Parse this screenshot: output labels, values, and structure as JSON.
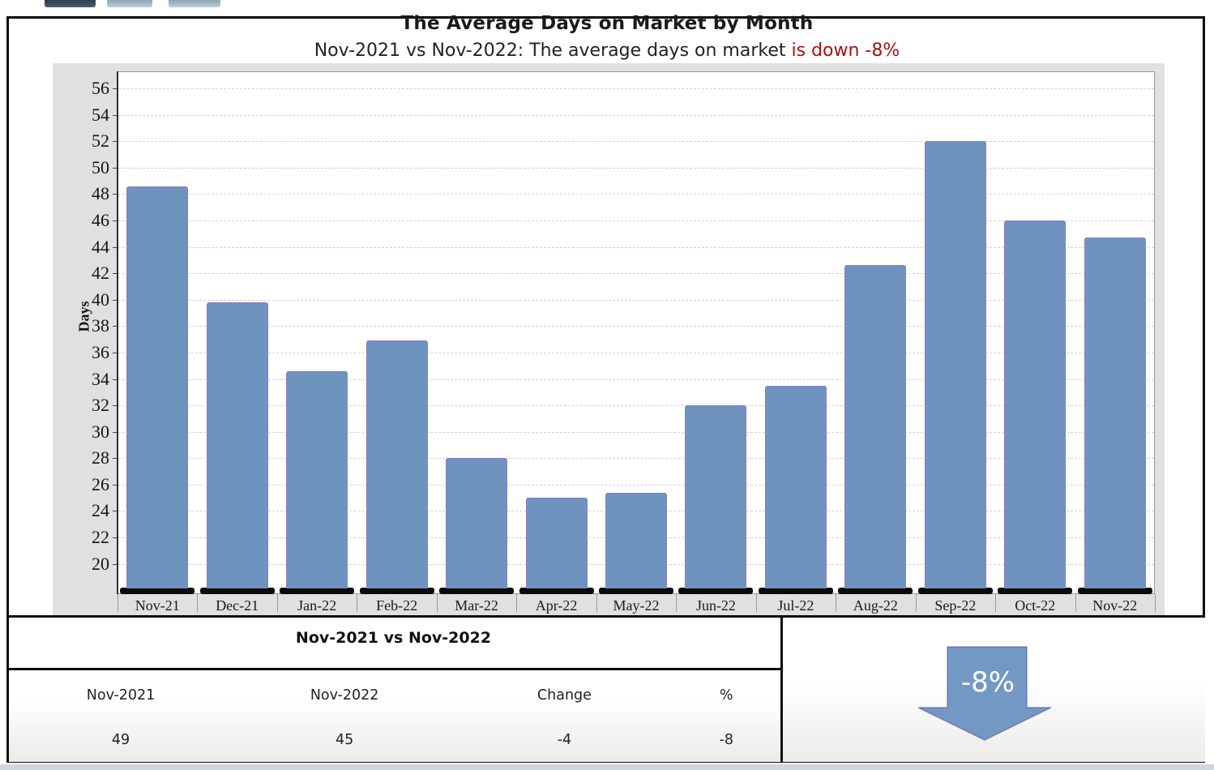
{
  "toolbar": {
    "buttons": [
      {
        "name": "toolbar-button-1",
        "color": "dark-slate"
      },
      {
        "name": "toolbar-button-2",
        "color": "light-blue"
      },
      {
        "name": "toolbar-button-3",
        "color": "light-blue"
      }
    ]
  },
  "header": {
    "title": "The Average Days on Market by Month",
    "subtitle_prefix": "Nov-2021 vs Nov-2022: The average days on market ",
    "subtitle_highlight": "is down -8%",
    "subtitle_highlight_color": "#a81111"
  },
  "chart_data": {
    "type": "bar",
    "title": "The Average Days on Market by Month",
    "categories": [
      "Nov-21",
      "Dec-21",
      "Jan-22",
      "Feb-22",
      "Mar-22",
      "Apr-22",
      "May-22",
      "Jun-22",
      "Jul-22",
      "Aug-22",
      "Sep-22",
      "Oct-22",
      "Nov-22"
    ],
    "values": [
      48.6,
      39.8,
      34.6,
      36.9,
      28.0,
      25.0,
      25.4,
      32.0,
      33.5,
      42.6,
      52.0,
      46.0,
      44.7
    ],
    "xlabel": "",
    "ylabel": "Days",
    "yticks": [
      56,
      54,
      52,
      50,
      48,
      46,
      44,
      42,
      40,
      38,
      36,
      34,
      32,
      30,
      28,
      26,
      24,
      22,
      20
    ],
    "ylim": [
      17.7,
      57.3
    ],
    "grid": true,
    "grid_style": "dashed",
    "legend_position": "none",
    "bar_color": "#6e93be",
    "bar_edge_color": "#8b7cc0",
    "baseline_color": "#0a0a0a"
  },
  "summary_table": {
    "header": "Nov-2021 vs Nov-2022",
    "columns": [
      "Nov-2021",
      "Nov-2022",
      "Change",
      "%"
    ],
    "values": [
      "49",
      "45",
      "-4",
      "-8"
    ]
  },
  "indicator": {
    "label": "-8%",
    "direction": "down",
    "arrow_color": "#7398c4"
  }
}
